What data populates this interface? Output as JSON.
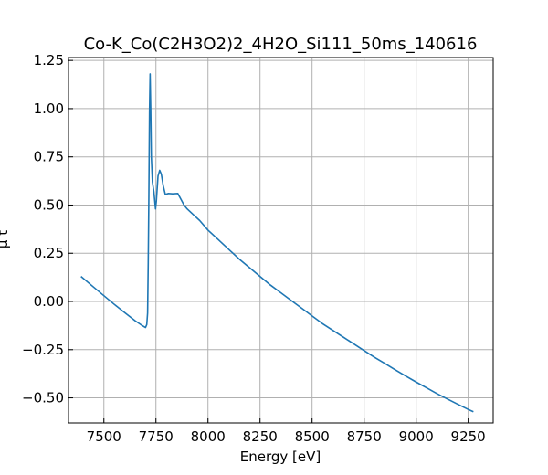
{
  "chart_data": {
    "type": "line",
    "title": "Co-K_Co(C2H3O2)2_4H2O_Si111_50ms_140616",
    "xlabel": "Energy [eV]",
    "ylabel": "μ t",
    "xlim": [
      7330,
      9370
    ],
    "ylim": [
      -0.63,
      1.265
    ],
    "xticks": [
      7500,
      7750,
      8000,
      8250,
      8500,
      8750,
      9000,
      9250
    ],
    "yticks": [
      -0.5,
      -0.25,
      0.0,
      0.25,
      0.5,
      0.75,
      1.0,
      1.25
    ],
    "xtick_labels": [
      "7500",
      "7750",
      "8000",
      "8250",
      "8500",
      "8750",
      "9000",
      "9250"
    ],
    "ytick_labels": [
      "−0.50",
      "−0.25",
      "0.00",
      "0.25",
      "0.50",
      "0.75",
      "1.00",
      "1.25"
    ],
    "grid": true,
    "line_color": "#1f77b4",
    "series": [
      {
        "x": [
          7390,
          7450,
          7500,
          7550,
          7600,
          7650,
          7680,
          7700,
          7706,
          7710,
          7713,
          7716,
          7719,
          7722,
          7725,
          7728,
          7733,
          7740,
          7748,
          7752,
          7760,
          7768,
          7776,
          7785,
          7795,
          7810,
          7830,
          7855,
          7870,
          7885,
          7900,
          7930,
          7960,
          8000,
          8050,
          8100,
          8150,
          8200,
          8250,
          8300,
          8350,
          8400,
          8450,
          8500,
          8550,
          8600,
          8650,
          8700,
          8750,
          8800,
          8850,
          8900,
          8950,
          9000,
          9050,
          9100,
          9150,
          9200,
          9250,
          9275
        ],
        "y": [
          0.13,
          0.075,
          0.03,
          -0.015,
          -0.058,
          -0.1,
          -0.122,
          -0.135,
          -0.12,
          -0.06,
          0.2,
          0.55,
          0.98,
          1.18,
          1.0,
          0.75,
          0.62,
          0.57,
          0.48,
          0.52,
          0.65,
          0.68,
          0.66,
          0.6,
          0.555,
          0.56,
          0.558,
          0.56,
          0.53,
          0.5,
          0.48,
          0.45,
          0.42,
          0.37,
          0.32,
          0.27,
          0.22,
          0.175,
          0.13,
          0.085,
          0.045,
          0.005,
          -0.035,
          -0.075,
          -0.115,
          -0.15,
          -0.185,
          -0.22,
          -0.255,
          -0.29,
          -0.322,
          -0.355,
          -0.387,
          -0.418,
          -0.448,
          -0.478,
          -0.506,
          -0.533,
          -0.56,
          -0.572
        ]
      }
    ]
  }
}
